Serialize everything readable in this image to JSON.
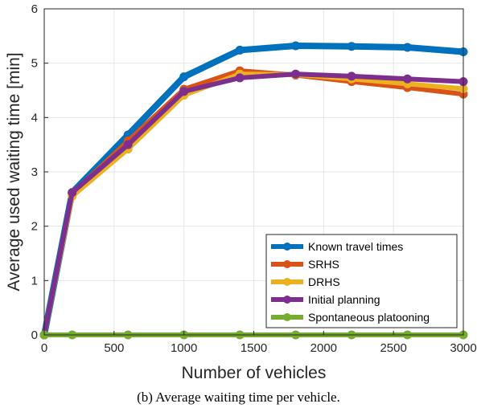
{
  "caption": "(b) Average waiting time per vehicle.",
  "chart_data": {
    "type": "line",
    "title": "",
    "xlabel": "Number of vehicles",
    "ylabel": "Average used waiting time [min]",
    "xlim": [
      0,
      3000
    ],
    "ylim": [
      0,
      6
    ],
    "x_ticks": [
      0,
      500,
      1000,
      1500,
      2000,
      2500,
      3000
    ],
    "y_ticks": [
      0,
      1,
      2,
      3,
      4,
      5,
      6
    ],
    "grid": true,
    "legend_position": "bottom-right",
    "x": [
      0,
      200,
      600,
      1000,
      1400,
      1800,
      2200,
      2600,
      3000
    ],
    "series": [
      {
        "name": "Known travel times",
        "color": "#0072BD",
        "values": [
          0,
          2.62,
          3.68,
          4.75,
          5.24,
          5.32,
          5.31,
          5.29,
          5.21
        ]
      },
      {
        "name": "SRHS",
        "color": "#D95319",
        "values": [
          0,
          2.6,
          3.57,
          4.52,
          4.86,
          4.78,
          4.66,
          4.55,
          4.43
        ]
      },
      {
        "name": "DRHS",
        "color": "#EDB120",
        "values": [
          0,
          2.55,
          3.42,
          4.41,
          4.8,
          4.79,
          4.71,
          4.62,
          4.53
        ]
      },
      {
        "name": "Initial planning",
        "color": "#7E2F8E",
        "values": [
          0,
          2.62,
          3.5,
          4.48,
          4.73,
          4.8,
          4.76,
          4.71,
          4.66
        ]
      },
      {
        "name": "Spontaneous platooning",
        "color": "#77AC30",
        "values": [
          0,
          0,
          0,
          0,
          0,
          0,
          0,
          0,
          0
        ]
      }
    ]
  }
}
